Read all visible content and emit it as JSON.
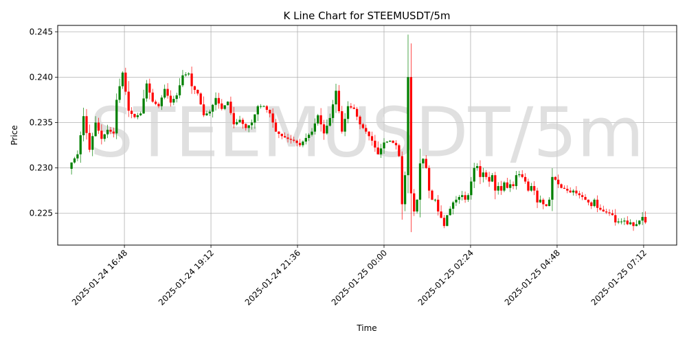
{
  "chart_data": {
    "type": "candlestick",
    "title": "K Line Chart for STEEMUSDT/5m",
    "xlabel": "Time",
    "ylabel": "Price",
    "watermark": "STEEMUSDT/5m",
    "grid": true,
    "x_start": "2025-01-24 15:20",
    "interval_minutes": 5,
    "xlim": [
      "2025-01-24 14:57",
      "2025-01-25 08:07"
    ],
    "ylim": [
      0.2215,
      0.2457
    ],
    "x_ticks": [
      "2025-01-24 16:48",
      "2025-01-24 19:12",
      "2025-01-24 21:36",
      "2025-01-25 00:00",
      "2025-01-25 02:24",
      "2025-01-25 04:48",
      "2025-01-25 07:12"
    ],
    "y_ticks": [
      "0.225",
      "0.230",
      "0.235",
      "0.240",
      "0.245"
    ],
    "colors": {
      "up": "#008000",
      "down": "#ff0000"
    },
    "anchors": [
      [
        0,
        0.2306
      ],
      [
        2,
        0.2315
      ],
      [
        4,
        0.2357
      ],
      [
        6,
        0.232
      ],
      [
        8,
        0.235
      ],
      [
        10,
        0.2332
      ],
      [
        12,
        0.2342
      ],
      [
        14,
        0.2338
      ],
      [
        15,
        0.2375
      ],
      [
        17,
        0.2405
      ],
      [
        19,
        0.2363
      ],
      [
        21,
        0.2356
      ],
      [
        23,
        0.236
      ],
      [
        25,
        0.2393
      ],
      [
        27,
        0.2373
      ],
      [
        29,
        0.2368
      ],
      [
        31,
        0.2387
      ],
      [
        33,
        0.2372
      ],
      [
        35,
        0.238
      ],
      [
        37,
        0.2402
      ],
      [
        39,
        0.2404
      ],
      [
        40,
        0.239
      ],
      [
        42,
        0.2382
      ],
      [
        44,
        0.2358
      ],
      [
        46,
        0.2362
      ],
      [
        48,
        0.2377
      ],
      [
        50,
        0.2365
      ],
      [
        52,
        0.2373
      ],
      [
        54,
        0.2348
      ],
      [
        56,
        0.2353
      ],
      [
        58,
        0.2344
      ],
      [
        60,
        0.235
      ],
      [
        62,
        0.2368
      ],
      [
        64,
        0.2368
      ],
      [
        66,
        0.236
      ],
      [
        68,
        0.234
      ],
      [
        70,
        0.2335
      ],
      [
        72,
        0.2332
      ],
      [
        74,
        0.233
      ],
      [
        76,
        0.2325
      ],
      [
        78,
        0.2333
      ],
      [
        80,
        0.234
      ],
      [
        82,
        0.2358
      ],
      [
        84,
        0.2338
      ],
      [
        86,
        0.2355
      ],
      [
        88,
        0.2385
      ],
      [
        90,
        0.234
      ],
      [
        92,
        0.2368
      ],
      [
        94,
        0.2365
      ],
      [
        96,
        0.2348
      ],
      [
        98,
        0.234
      ],
      [
        100,
        0.233
      ],
      [
        102,
        0.2315
      ],
      [
        104,
        0.2328
      ],
      [
        106,
        0.233
      ],
      [
        108,
        0.2325
      ],
      [
        109,
        0.2313
      ],
      [
        110,
        0.226
      ],
      [
        111,
        0.2292
      ],
      [
        112,
        0.24
      ],
      [
        113,
        0.2272
      ],
      [
        114,
        0.2252
      ],
      [
        115,
        0.2265
      ],
      [
        116,
        0.2305
      ],
      [
        117,
        0.231
      ],
      [
        118,
        0.23
      ],
      [
        119,
        0.2275
      ],
      [
        120,
        0.2265
      ],
      [
        121,
        0.2265
      ],
      [
        122,
        0.2252
      ],
      [
        123,
        0.2245
      ],
      [
        124,
        0.2236
      ],
      [
        125,
        0.2248
      ],
      [
        126,
        0.2255
      ],
      [
        127,
        0.2262
      ],
      [
        128,
        0.2265
      ],
      [
        129,
        0.2268
      ],
      [
        130,
        0.227
      ],
      [
        131,
        0.2265
      ],
      [
        132,
        0.227
      ],
      [
        133,
        0.2285
      ],
      [
        134,
        0.23
      ],
      [
        135,
        0.2302
      ],
      [
        136,
        0.229
      ],
      [
        137,
        0.2295
      ],
      [
        138,
        0.229
      ],
      [
        139,
        0.2285
      ],
      [
        140,
        0.2292
      ],
      [
        141,
        0.2275
      ],
      [
        142,
        0.228
      ],
      [
        143,
        0.2275
      ],
      [
        144,
        0.2284
      ],
      [
        145,
        0.2278
      ],
      [
        146,
        0.2282
      ],
      [
        147,
        0.228
      ],
      [
        148,
        0.2292
      ],
      [
        149,
        0.2293
      ],
      [
        150,
        0.229
      ],
      [
        151,
        0.2285
      ],
      [
        152,
        0.2275
      ],
      [
        153,
        0.228
      ],
      [
        154,
        0.2275
      ],
      [
        155,
        0.2262
      ],
      [
        156,
        0.2265
      ],
      [
        157,
        0.226
      ],
      [
        158,
        0.2258
      ],
      [
        159,
        0.2265
      ],
      [
        160,
        0.229
      ],
      [
        161,
        0.2287
      ],
      [
        162,
        0.2282
      ],
      [
        163,
        0.2278
      ],
      [
        164,
        0.2277
      ],
      [
        165,
        0.2275
      ],
      [
        166,
        0.2273
      ],
      [
        167,
        0.2275
      ],
      [
        168,
        0.2272
      ],
      [
        169,
        0.227
      ],
      [
        170,
        0.2268
      ],
      [
        171,
        0.2265
      ],
      [
        172,
        0.2262
      ],
      [
        173,
        0.2258
      ],
      [
        174,
        0.2265
      ],
      [
        175,
        0.2256
      ],
      [
        176,
        0.2254
      ],
      [
        177,
        0.2252
      ],
      [
        178,
        0.2251
      ],
      [
        179,
        0.225
      ],
      [
        180,
        0.2248
      ],
      [
        181,
        0.224
      ],
      [
        182,
        0.2241
      ],
      [
        183,
        0.2241
      ],
      [
        184,
        0.2242
      ],
      [
        185,
        0.2238
      ],
      [
        186,
        0.224
      ],
      [
        187,
        0.2236
      ],
      [
        188,
        0.2238
      ],
      [
        189,
        0.2242
      ],
      [
        190,
        0.2246
      ],
      [
        191,
        0.224
      ]
    ]
  }
}
